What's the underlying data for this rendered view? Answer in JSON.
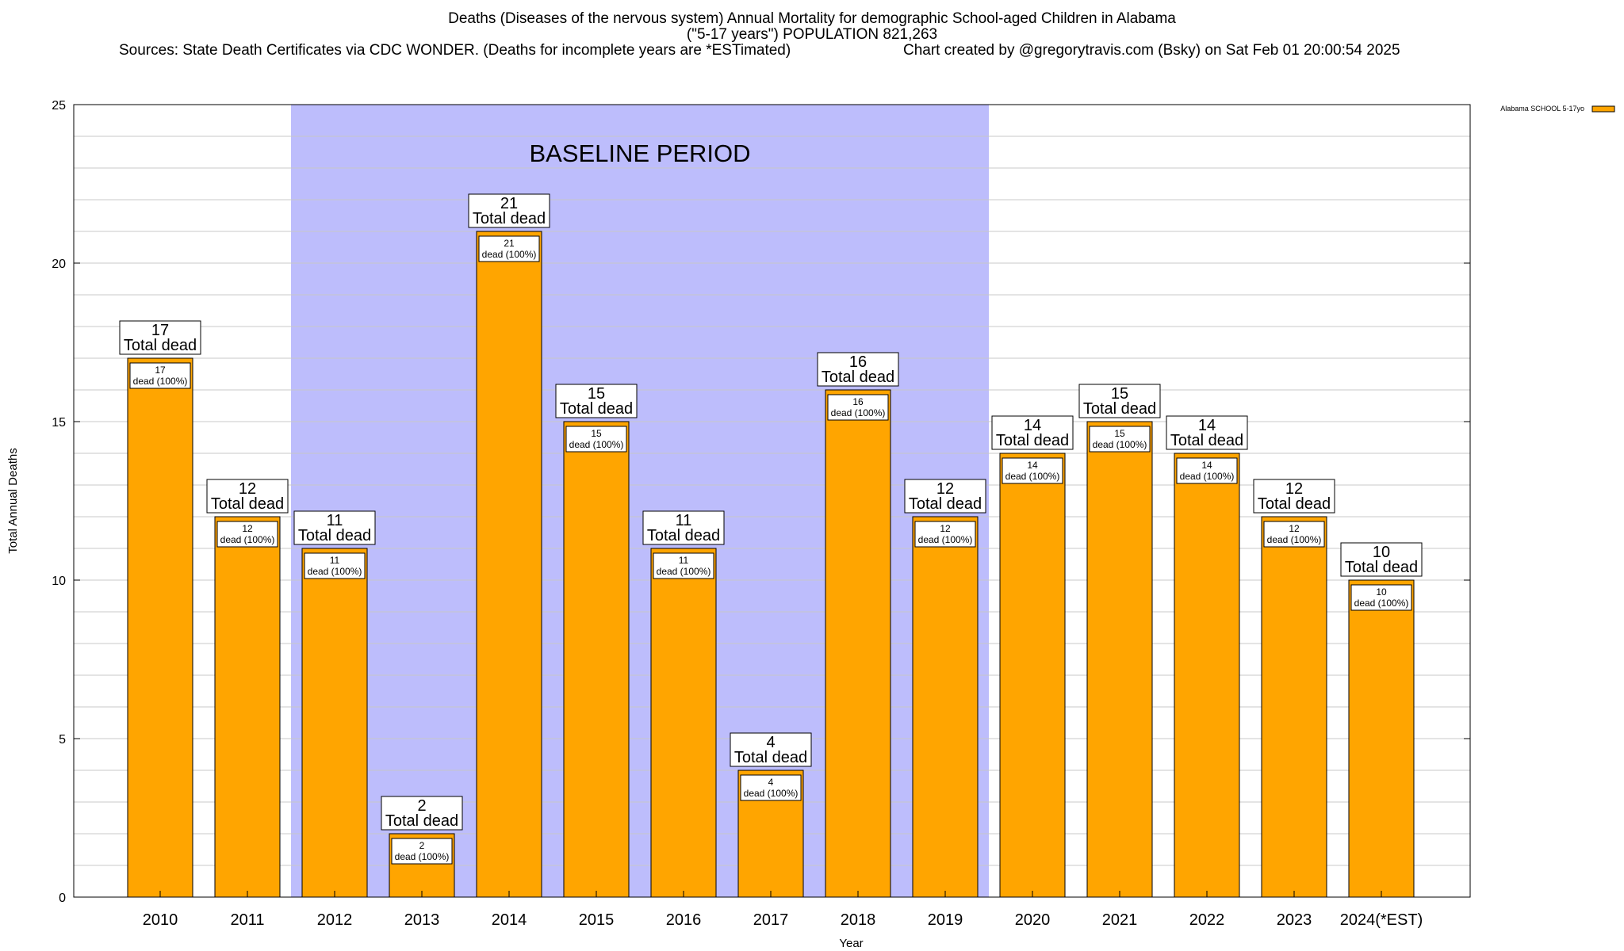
{
  "header": {
    "title_line1": "Deaths (Diseases of the nervous system) Annual Mortality for demographic School-aged Children in Alabama",
    "title_line2": "(\"5-17 years\") POPULATION 821,263",
    "sources": "Sources: State Death Certificates via CDC WONDER. (Deaths for incomplete years are *ESTimated)",
    "credit": "Chart created by @gregorytravis.com (Bsky) on Sat Feb 01 20:00:54 2025"
  },
  "chart_data": {
    "type": "bar",
    "categories": [
      "2010",
      "2011",
      "2012",
      "2013",
      "2014",
      "2015",
      "2016",
      "2017",
      "2018",
      "2019",
      "2020",
      "2021",
      "2022",
      "2023",
      "2024(*EST)"
    ],
    "series": [
      {
        "name": "Alabama SCHOOL 5-17yo",
        "values": [
          17,
          12,
          11,
          2,
          21,
          15,
          11,
          4,
          16,
          12,
          14,
          15,
          14,
          12,
          10
        ]
      }
    ],
    "total_label_suffix": "Total dead",
    "bar_label_suffix": "dead (100%)",
    "xlabel": "Year",
    "ylabel": "Total Annual Deaths",
    "ylim": [
      0,
      25
    ],
    "yticks": [
      0,
      5,
      10,
      15,
      20,
      25
    ],
    "grid": true,
    "legend_position": "top-right",
    "shaded_region": {
      "label": "BASELINE PERIOD",
      "from": "2012",
      "to": "2019"
    },
    "colors": {
      "bar": "#FFA500",
      "baseline": "#BDBDFC",
      "grid": "#c8c8c8"
    }
  }
}
